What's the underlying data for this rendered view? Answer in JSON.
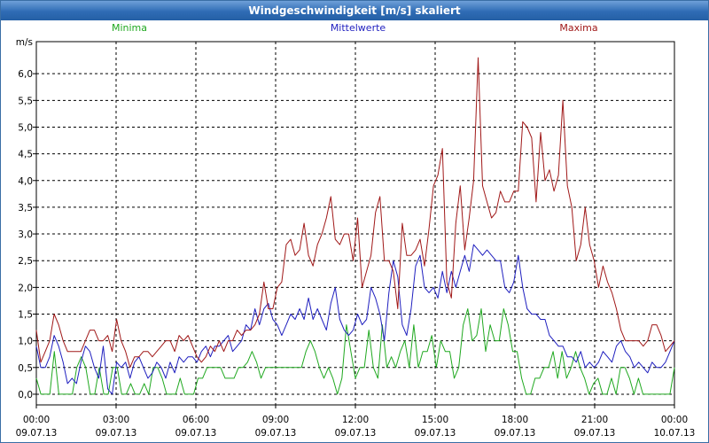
{
  "window": {
    "title": "Windgeschwindigkeit [m/s] skaliert"
  },
  "colors": {
    "minima": "#1fa81f",
    "mittel": "#1f1fbf",
    "maxima": "#a01818",
    "grid": "#000000"
  },
  "chart_data": {
    "type": "line",
    "title": "Windgeschwindigkeit [m/s] skaliert",
    "ylabel": "m/s",
    "xlabel": "",
    "ylim": [
      -0.2,
      6.6
    ],
    "xlim": [
      0,
      24
    ],
    "y_ticks": [
      "0,0",
      "0,5",
      "1,0",
      "1,5",
      "2,0",
      "2,5",
      "3,0",
      "3,5",
      "4,0",
      "4,5",
      "5,0",
      "5,5",
      "6,0"
    ],
    "x_ticks": [
      {
        "time": "00:00",
        "date": "09.07.13"
      },
      {
        "time": "03:00",
        "date": "09.07.13"
      },
      {
        "time": "06:00",
        "date": "09.07.13"
      },
      {
        "time": "09:00",
        "date": "09.07.13"
      },
      {
        "time": "12:00",
        "date": "09.07.13"
      },
      {
        "time": "15:00",
        "date": "09.07.13"
      },
      {
        "time": "18:00",
        "date": "09.07.13"
      },
      {
        "time": "21:00",
        "date": "09.07.13"
      },
      {
        "time": "00:00",
        "date": "10.07.13"
      }
    ],
    "series": [
      {
        "name": "Minima",
        "values": [
          0.3,
          0.0,
          0.0,
          0.0,
          0.8,
          0.0,
          0.0,
          0.0,
          0.0,
          0.5,
          0.7,
          0.5,
          0.0,
          0.0,
          0.5,
          0.0,
          0.0,
          0.5,
          0.5,
          0.0,
          0.0,
          0.2,
          0.0,
          0.0,
          0.2,
          0.0,
          0.5,
          0.5,
          0.3,
          0.0,
          0.0,
          0.0,
          0.3,
          0.0,
          0.0,
          0.0,
          0.3,
          0.3,
          0.5,
          0.5,
          0.5,
          0.5,
          0.3,
          0.3,
          0.3,
          0.5,
          0.5,
          0.6,
          0.8,
          0.6,
          0.3,
          0.5,
          0.5,
          0.5,
          0.5,
          0.5,
          0.5,
          0.5,
          0.5,
          0.5,
          0.8,
          1.0,
          0.8,
          0.5,
          0.3,
          0.5,
          0.3,
          0.0,
          0.3,
          1.3,
          0.8,
          0.3,
          0.5,
          0.5,
          1.2,
          0.5,
          0.3,
          1.3,
          0.5,
          0.7,
          0.5,
          0.8,
          1.0,
          0.5,
          1.3,
          0.5,
          0.8,
          0.8,
          1.1,
          0.5,
          1.0,
          0.8,
          0.8,
          0.3,
          0.5,
          1.3,
          1.6,
          1.0,
          1.1,
          1.6,
          0.8,
          1.3,
          1.0,
          1.0,
          1.6,
          1.3,
          0.8,
          0.8,
          0.3,
          0.0,
          0.0,
          0.3,
          0.3,
          0.5,
          0.5,
          0.8,
          0.3,
          0.8,
          0.3,
          0.5,
          0.8,
          0.5,
          0.3,
          0.0,
          0.2,
          0.3,
          0.0,
          0.0,
          0.3,
          0.0,
          0.5,
          0.5,
          0.3,
          0.0,
          0.3,
          0.0,
          0.0,
          0.0,
          0.0,
          0.0,
          0.0,
          0.0,
          0.5
        ],
        "color_key": "minima"
      },
      {
        "name": "Mittelwerte",
        "values": [
          0.9,
          0.5,
          0.5,
          0.7,
          1.1,
          0.9,
          0.6,
          0.2,
          0.3,
          0.2,
          0.6,
          0.9,
          0.8,
          0.5,
          0.3,
          0.9,
          0.1,
          0.0,
          0.6,
          0.5,
          0.6,
          0.3,
          0.6,
          0.7,
          0.5,
          0.3,
          0.4,
          0.6,
          0.5,
          0.3,
          0.6,
          0.4,
          0.7,
          0.6,
          0.7,
          0.7,
          0.6,
          0.8,
          0.9,
          0.7,
          0.9,
          0.9,
          1.0,
          1.1,
          0.8,
          0.9,
          1.0,
          1.3,
          1.2,
          1.6,
          1.3,
          1.6,
          1.7,
          1.4,
          1.3,
          1.1,
          1.3,
          1.5,
          1.4,
          1.6,
          1.4,
          1.8,
          1.4,
          1.6,
          1.4,
          1.2,
          1.7,
          2.0,
          1.4,
          1.2,
          1.1,
          1.2,
          1.5,
          1.3,
          1.4,
          2.0,
          1.8,
          1.5,
          1.0,
          1.9,
          2.5,
          2.2,
          1.3,
          1.1,
          1.6,
          2.4,
          2.6,
          2.0,
          1.9,
          2.0,
          1.8,
          2.3,
          1.9,
          2.3,
          2.0,
          2.3,
          2.6,
          2.3,
          2.8,
          2.7,
          2.6,
          2.7,
          2.6,
          2.5,
          2.5,
          2.0,
          1.9,
          2.1,
          2.6,
          2.0,
          1.6,
          1.5,
          1.5,
          1.4,
          1.4,
          1.1,
          1.0,
          0.9,
          0.9,
          0.7,
          0.7,
          0.6,
          0.8,
          0.5,
          0.6,
          0.5,
          0.6,
          0.8,
          0.7,
          0.6,
          0.9,
          1.0,
          0.8,
          0.7,
          0.5,
          0.6,
          0.5,
          0.4,
          0.6,
          0.5,
          0.5,
          0.6,
          0.8,
          1.0
        ],
        "color_key": "mittel"
      },
      {
        "name": "Maxima",
        "values": [
          1.2,
          0.6,
          0.8,
          1.0,
          1.5,
          1.3,
          1.0,
          0.8,
          0.8,
          0.8,
          0.8,
          1.0,
          1.2,
          1.2,
          1.0,
          1.0,
          1.1,
          0.8,
          1.4,
          1.0,
          0.8,
          0.5,
          0.7,
          0.7,
          0.8,
          0.8,
          0.7,
          0.8,
          0.9,
          1.0,
          1.0,
          0.8,
          1.1,
          1.0,
          1.1,
          0.9,
          0.7,
          0.6,
          0.7,
          0.9,
          0.8,
          1.0,
          0.8,
          1.0,
          1.0,
          1.2,
          1.1,
          1.2,
          1.2,
          1.3,
          1.5,
          2.1,
          1.6,
          1.6,
          2.0,
          2.1,
          2.8,
          2.9,
          2.6,
          2.7,
          3.2,
          2.6,
          2.4,
          2.8,
          3.0,
          3.3,
          3.7,
          2.9,
          2.8,
          3.0,
          3.0,
          2.5,
          3.3,
          2.0,
          2.3,
          2.6,
          3.4,
          3.7,
          2.5,
          2.5,
          2.3,
          1.6,
          3.2,
          2.6,
          2.6,
          2.7,
          2.9,
          2.4,
          3.1,
          3.9,
          4.1,
          4.6,
          2.1,
          1.8,
          3.2,
          3.9,
          2.7,
          3.3,
          4.0,
          6.3,
          3.9,
          3.6,
          3.3,
          3.4,
          3.8,
          3.6,
          3.6,
          3.8,
          3.8,
          5.1,
          5.0,
          4.8,
          3.6,
          4.9,
          4.0,
          4.2,
          3.8,
          4.1,
          5.5,
          3.9,
          3.5,
          2.5,
          2.8,
          3.5,
          2.8,
          2.5,
          2.0,
          2.4,
          2.1,
          1.9,
          1.6,
          1.2,
          1.0,
          1.0,
          1.0,
          1.0,
          0.9,
          1.0,
          1.3,
          1.3,
          1.1,
          0.8,
          0.9,
          1.0
        ],
        "color_key": "maxima"
      }
    ],
    "legend": [
      "Minima",
      "Mittelwerte",
      "Maxima"
    ]
  }
}
